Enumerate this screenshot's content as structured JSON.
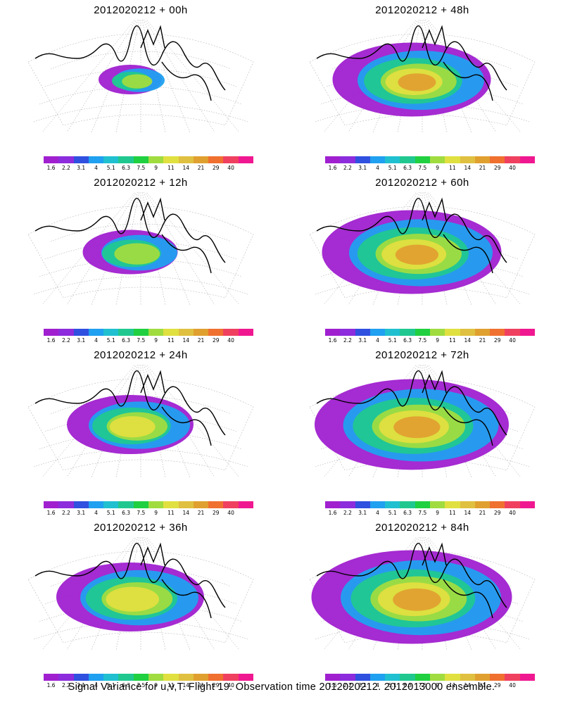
{
  "panels": [
    {
      "title": "2012020212 + 00h",
      "col": 0,
      "row": 0,
      "extent": 0.3,
      "hot": 0.25
    },
    {
      "title": "2012020212 + 48h",
      "col": 1,
      "row": 0,
      "extent": 0.75,
      "hot": 0.6
    },
    {
      "title": "2012020212 + 12h",
      "col": 0,
      "row": 1,
      "extent": 0.45,
      "hot": 0.35
    },
    {
      "title": "2012020212 + 60h",
      "col": 1,
      "row": 1,
      "extent": 0.85,
      "hot": 0.65
    },
    {
      "title": "2012020212 + 24h",
      "col": 0,
      "row": 2,
      "extent": 0.6,
      "hot": 0.45
    },
    {
      "title": "2012020212 + 72h",
      "col": 1,
      "row": 2,
      "extent": 0.92,
      "hot": 0.75
    },
    {
      "title": "2012020212 + 36h",
      "col": 0,
      "row": 3,
      "extent": 0.7,
      "hot": 0.5
    },
    {
      "title": "2012020212 + 84h",
      "col": 1,
      "row": 3,
      "extent": 0.95,
      "hot": 0.8
    }
  ],
  "colorbar": {
    "colors": [
      "#a020d0",
      "#8c2cdc",
      "#3050e0",
      "#20a0f0",
      "#20c0d0",
      "#20c890",
      "#20d040",
      "#a0dc40",
      "#e0e040",
      "#e0c040",
      "#e0a030",
      "#f07030",
      "#f04060",
      "#f01890"
    ],
    "ticks": [
      "1.6",
      "2.2",
      "3.1",
      "4",
      "5.1",
      "6.3",
      "7.5",
      "9",
      "11",
      "14",
      "21",
      "29",
      "40"
    ]
  },
  "footer": "Signal Variance for u,v,T. Flight 19. Observation time 2012020212. 2012013000 ensemble."
}
